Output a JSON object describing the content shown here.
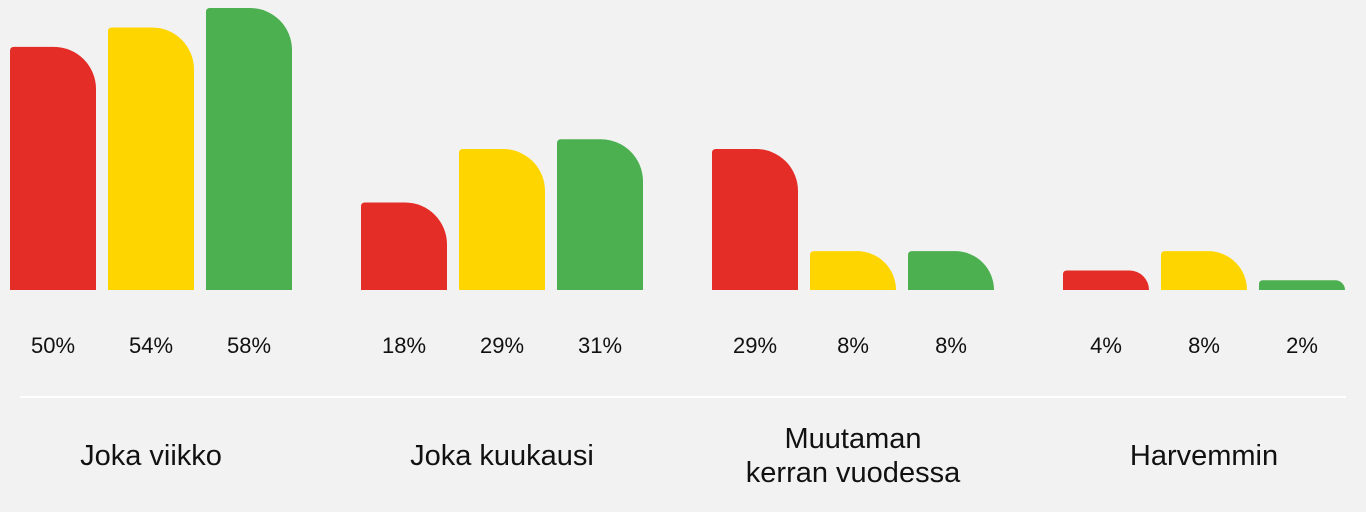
{
  "chart_data": {
    "type": "bar",
    "categories": [
      "Joka viikko",
      "Joka kuukausi",
      "Muutaman\nkerran vuodessa",
      "Harvemmin"
    ],
    "series": [
      {
        "color": "#e52d27",
        "values": [
          50,
          18,
          29,
          4
        ],
        "value_labels": [
          "50%",
          "18%",
          "29%",
          "4%"
        ]
      },
      {
        "color": "#ffd500",
        "values": [
          54,
          29,
          8,
          8
        ],
        "value_labels": [
          "54%",
          "29%",
          "8%",
          "8%"
        ]
      },
      {
        "color": "#4caf50",
        "values": [
          58,
          31,
          8,
          2
        ],
        "value_labels": [
          "58%",
          "31%",
          "8%",
          "2%"
        ]
      }
    ],
    "ylim": [
      0,
      58
    ]
  }
}
